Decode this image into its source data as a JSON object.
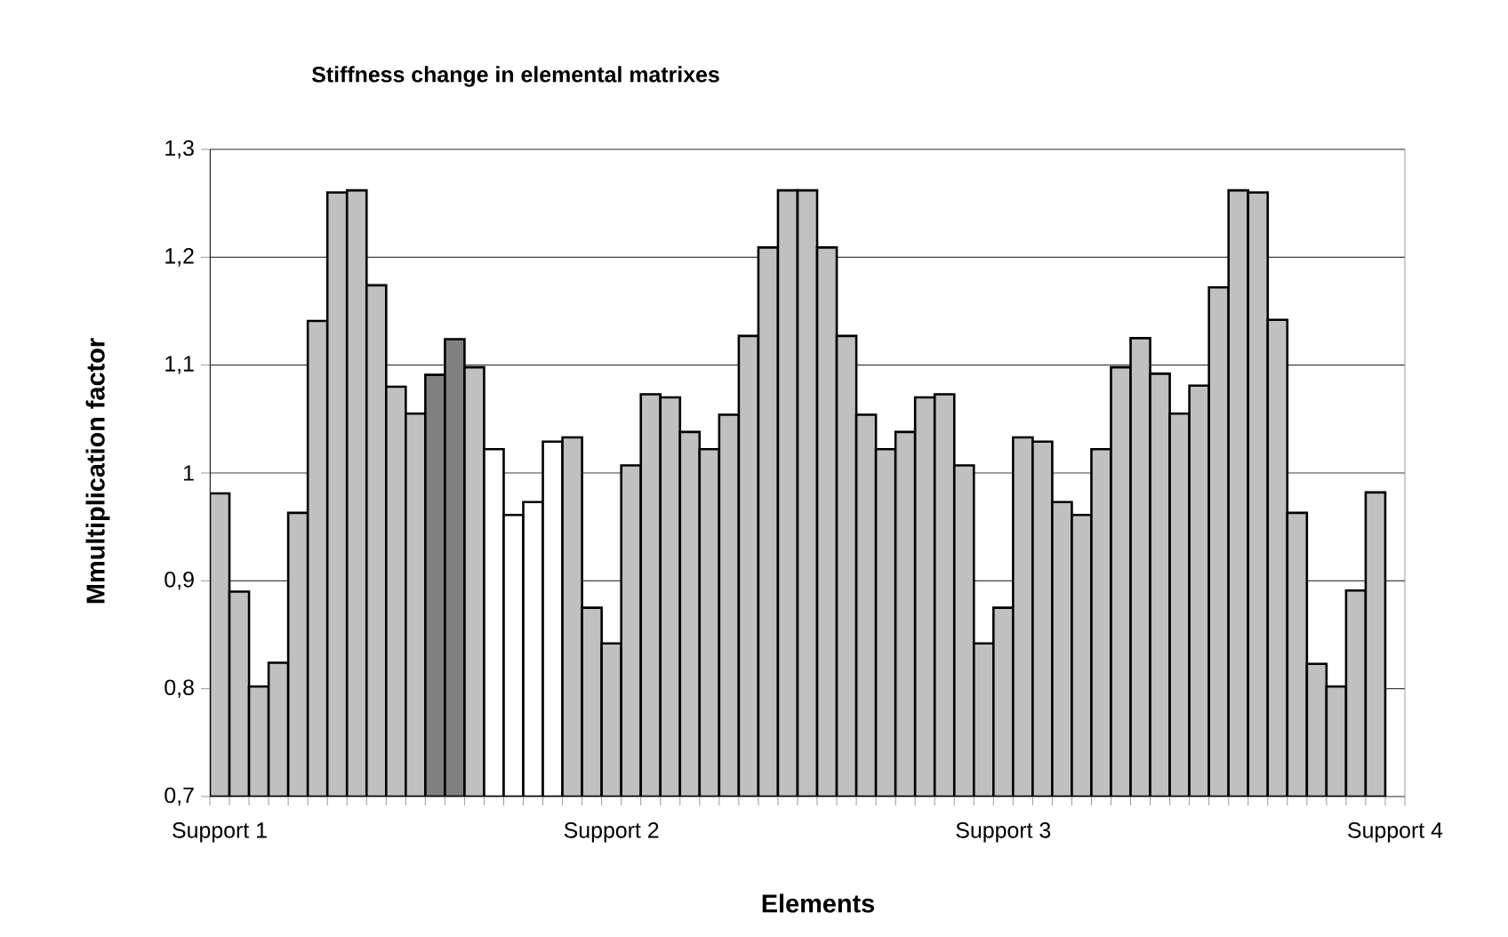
{
  "chart_data": {
    "type": "bar",
    "title": "Stiffness change in elemental matrixes",
    "xlabel": "Elements",
    "ylabel": "Mmultiplication factor",
    "categories": [
      "Support 1",
      null,
      null,
      null,
      null,
      null,
      null,
      null,
      null,
      null,
      null,
      null,
      null,
      null,
      null,
      null,
      null,
      null,
      null,
      null,
      "Support 2",
      null,
      null,
      null,
      null,
      null,
      null,
      null,
      null,
      null,
      null,
      null,
      null,
      null,
      null,
      null,
      null,
      null,
      null,
      null,
      "Support 3",
      null,
      null,
      null,
      null,
      null,
      null,
      null,
      null,
      null,
      null,
      null,
      null,
      null,
      null,
      null,
      null,
      null,
      null,
      null,
      "Support 4"
    ],
    "values": [
      0.981,
      0.89,
      0.802,
      0.824,
      0.963,
      1.141,
      1.26,
      1.262,
      1.174,
      1.08,
      1.055,
      1.091,
      1.124,
      1.098,
      1.022,
      0.961,
      0.973,
      1.029,
      1.033,
      0.875,
      0.842,
      1.007,
      1.073,
      1.07,
      1.038,
      1.022,
      1.054,
      1.127,
      1.209,
      1.262,
      1.262,
      1.209,
      1.127,
      1.054,
      1.022,
      1.038,
      1.07,
      1.073,
      1.007,
      0.842,
      0.875,
      1.033,
      1.029,
      0.973,
      0.961,
      1.022,
      1.098,
      1.125,
      1.092,
      1.055,
      1.081,
      1.172,
      1.262,
      1.26,
      1.142,
      0.963,
      0.823,
      0.802,
      0.891,
      0.982,
      null
    ],
    "colors": [
      "#c0c0c0",
      "#c0c0c0",
      "#c0c0c0",
      "#c0c0c0",
      "#c0c0c0",
      "#c0c0c0",
      "#c0c0c0",
      "#c0c0c0",
      "#c0c0c0",
      "#c0c0c0",
      "#c0c0c0",
      "#808080",
      "#808080",
      "#c0c0c0",
      "#ffffff",
      "#ffffff",
      "#ffffff",
      "#ffffff",
      "#c0c0c0",
      "#c0c0c0",
      "#c0c0c0",
      "#c0c0c0",
      "#c0c0c0",
      "#c0c0c0",
      "#c0c0c0",
      "#c0c0c0",
      "#c0c0c0",
      "#c0c0c0",
      "#c0c0c0",
      "#c0c0c0",
      "#c0c0c0",
      "#c0c0c0",
      "#c0c0c0",
      "#c0c0c0",
      "#c0c0c0",
      "#c0c0c0",
      "#c0c0c0",
      "#c0c0c0",
      "#c0c0c0",
      "#c0c0c0",
      "#c0c0c0",
      "#c0c0c0",
      "#c0c0c0",
      "#c0c0c0",
      "#c0c0c0",
      "#c0c0c0",
      "#c0c0c0",
      "#c0c0c0",
      "#c0c0c0",
      "#c0c0c0",
      "#c0c0c0",
      "#c0c0c0",
      "#c0c0c0",
      "#c0c0c0",
      "#c0c0c0",
      "#c0c0c0",
      "#c0c0c0",
      "#c0c0c0",
      "#c0c0c0",
      "#c0c0c0",
      "#c0c0c0"
    ],
    "ylim": [
      0.7,
      1.3
    ],
    "yticks": [
      {
        "value": 0.7,
        "label": "0,7"
      },
      {
        "value": 0.8,
        "label": "0,8"
      },
      {
        "value": 0.9,
        "label": "0,9"
      },
      1,
      {
        "value": 1.1,
        "label": "1,1"
      },
      {
        "value": 1.2,
        "label": "1,2"
      },
      {
        "value": 1.3,
        "label": "1,3"
      }
    ],
    "grid": "y"
  }
}
